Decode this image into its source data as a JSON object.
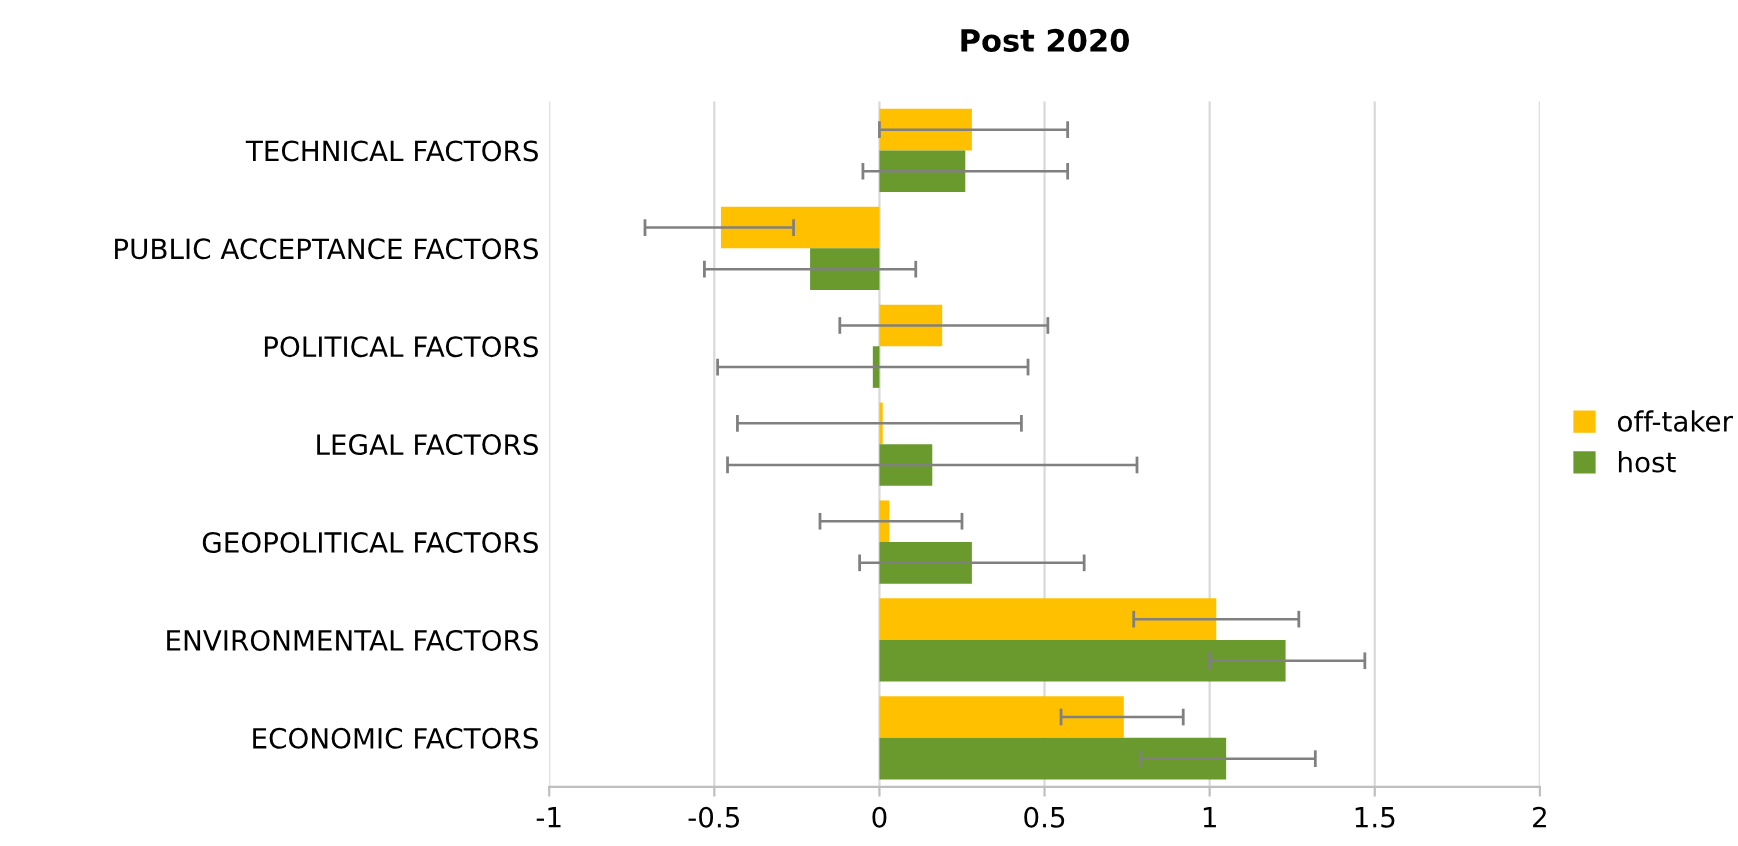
{
  "chart_data": {
    "type": "bar",
    "orientation": "horizontal",
    "title": "Post 2020",
    "categories": [
      "TECHNICAL FACTORS",
      "PUBLIC ACCEPTANCE FACTORS",
      "POLITICAL FACTORS",
      "LEGAL FACTORS",
      "GEOPOLITICAL FACTORS",
      "ENVIRONMENTAL FACTORS",
      "ECONOMIC FACTORS"
    ],
    "series": [
      {
        "name": "off-taker",
        "color": "#ffc000",
        "values": [
          0.28,
          -0.48,
          0.19,
          0.01,
          0.03,
          1.02,
          0.74
        ],
        "errors": [
          [
            0,
            0.57
          ],
          [
            -0.71,
            -0.26
          ],
          [
            -0.12,
            0.51
          ],
          [
            -0.43,
            0.43
          ],
          [
            -0.18,
            0.25
          ],
          [
            0.77,
            1.27
          ],
          [
            0.55,
            0.92
          ]
        ]
      },
      {
        "name": "host",
        "color": "#6a9a2e",
        "values": [
          0.26,
          -0.21,
          -0.02,
          0.16,
          0.28,
          1.23,
          1.05
        ],
        "errors": [
          [
            -0.05,
            0.57
          ],
          [
            -0.53,
            0.11
          ],
          [
            -0.49,
            0.45
          ],
          [
            -0.46,
            0.78
          ],
          [
            -0.06,
            0.62
          ],
          [
            1.0,
            1.47
          ],
          [
            0.79,
            1.32
          ]
        ]
      }
    ],
    "xlim": [
      -1,
      2
    ],
    "xticks": [
      -1,
      -0.5,
      0,
      0.5,
      1,
      1.5,
      2
    ],
    "grid": "x",
    "legend": "right"
  }
}
